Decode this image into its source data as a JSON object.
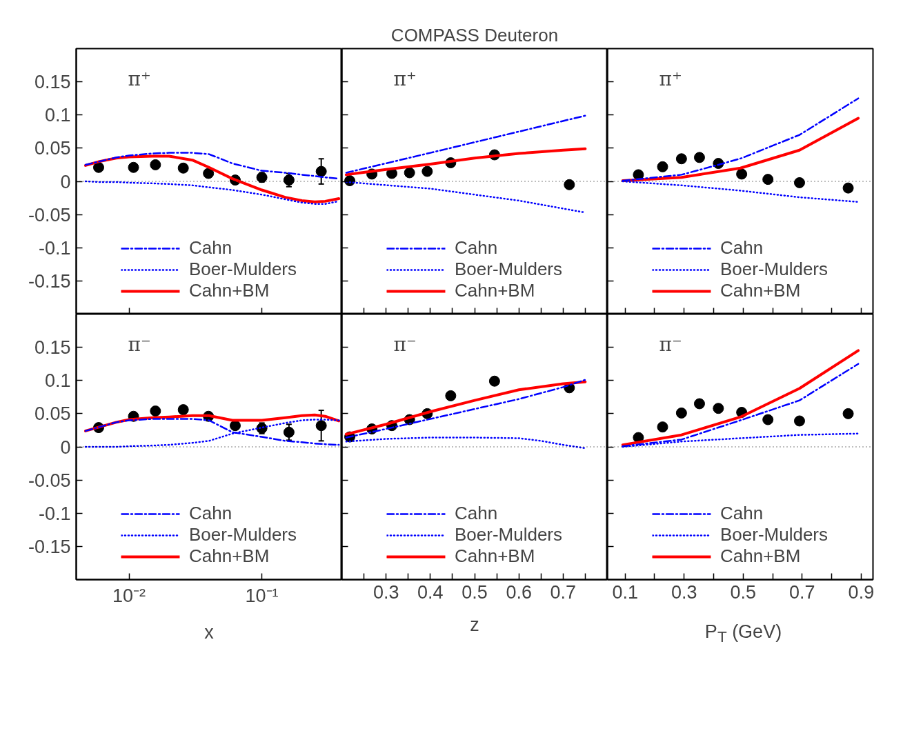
{
  "chart_data": [
    {
      "type": "line",
      "annotations": [
        "π⁺"
      ],
      "log": "x",
      "xlim": [
        0.004,
        0.4
      ],
      "xticks": [
        {
          "value": 0.01,
          "label": null
        },
        {
          "value": 0.1,
          "label": null
        }
      ],
      "ylim": [
        -0.2,
        0.2
      ],
      "yticks": [
        0.15,
        0.1,
        0.05,
        0,
        -0.05,
        -0.1,
        -0.15
      ],
      "tick_labels": "y",
      "grid": false,
      "legend": "bottom",
      "ref_lines": [
        {
          "axis": "y",
          "value": 0,
          "color": "#000000",
          "line_style": "dotted"
        }
      ],
      "series": [
        {
          "type": "scatter",
          "marker": "circle",
          "color": "#000000",
          "x": [
            0.0059,
            0.0108,
            0.0158,
            0.0256,
            0.0396,
            0.063,
            0.1,
            0.16,
            0.28
          ],
          "values": [
            0.021,
            0.021,
            0.025,
            0.02,
            0.012,
            0.002,
            0.006,
            0.002,
            0.015
          ],
          "errors": [
            null,
            null,
            null,
            null,
            null,
            null,
            0.007,
            0.01,
            0.019
          ]
        },
        {
          "name": "Cahn",
          "line_style": "dashdot",
          "color": "#0000ff",
          "x": [
            0.0047,
            0.006,
            0.008,
            0.01,
            0.015,
            0.02,
            0.03,
            0.04,
            0.06,
            0.1,
            0.15,
            0.2,
            0.25,
            0.3,
            0.38
          ],
          "values": [
            0.025,
            0.03,
            0.036,
            0.039,
            0.042,
            0.043,
            0.043,
            0.041,
            0.027,
            0.016,
            0.013,
            0.01,
            0.008,
            0.006,
            0.004
          ]
        },
        {
          "name": "Boer-Mulders",
          "line_style": "dotted",
          "color": "#0000ff",
          "x": [
            0.0047,
            0.006,
            0.008,
            0.01,
            0.015,
            0.02,
            0.03,
            0.04,
            0.06,
            0.1,
            0.15,
            0.2,
            0.25,
            0.3,
            0.38
          ],
          "values": [
            0,
            -0.001,
            -0.001,
            -0.002,
            -0.003,
            -0.004,
            -0.006,
            -0.009,
            -0.013,
            -0.02,
            -0.027,
            -0.032,
            -0.034,
            -0.034,
            -0.03
          ]
        },
        {
          "name": "Cahn+BM",
          "line_style": "solid",
          "color": "#ff0000",
          "x": [
            0.0047,
            0.006,
            0.008,
            0.01,
            0.015,
            0.02,
            0.03,
            0.04,
            0.06,
            0.1,
            0.15,
            0.2,
            0.25,
            0.3,
            0.38
          ],
          "values": [
            0.024,
            0.03,
            0.035,
            0.037,
            0.038,
            0.038,
            0.032,
            0.021,
            0.004,
            -0.013,
            -0.024,
            -0.029,
            -0.031,
            -0.03,
            -0.026
          ]
        }
      ]
    },
    {
      "type": "line",
      "title": "COMPASS Deuteron",
      "annotations": [
        "π⁺"
      ],
      "xlim": [
        0.2,
        0.8
      ],
      "xticks": [
        {
          "value": 0.25,
          "label": null
        },
        0.3,
        {
          "value": 0.35,
          "label": null
        },
        0.4,
        {
          "value": 0.45,
          "label": null
        },
        0.5,
        {
          "value": 0.55,
          "label": null
        },
        0.6,
        {
          "value": 0.65,
          "label": null
        },
        0.7,
        {
          "value": 0.75,
          "label": null
        }
      ],
      "ylim": [
        -0.2,
        0.2
      ],
      "yticks": [
        0.15,
        0.1,
        0.05,
        0,
        -0.05,
        -0.1,
        -0.15
      ],
      "tick_labels": false,
      "grid": false,
      "legend": "bottom",
      "ref_lines": [
        {
          "axis": "y",
          "value": 0,
          "color": "#000000",
          "line_style": "dotted"
        }
      ],
      "series": [
        {
          "type": "scatter",
          "marker": "circle",
          "color": "#000000",
          "x": [
            0.218,
            0.268,
            0.313,
            0.353,
            0.393,
            0.446,
            0.545,
            0.714
          ],
          "values": [
            0.001,
            0.011,
            0.012,
            0.013,
            0.015,
            0.028,
            0.04,
            -0.005
          ]
        },
        {
          "name": "Cahn",
          "line_style": "dashdot",
          "color": "#0000ff",
          "x": [
            0.21,
            0.4,
            0.6,
            0.75
          ],
          "values": [
            0.013,
            0.043,
            0.075,
            0.099
          ]
        },
        {
          "name": "Boer-Mulders",
          "line_style": "dotted",
          "color": "#0000ff",
          "x": [
            0.21,
            0.4,
            0.6,
            0.75
          ],
          "values": [
            -0.001,
            -0.011,
            -0.029,
            -0.047
          ]
        },
        {
          "name": "Cahn+BM",
          "line_style": "solid",
          "color": "#ff0000",
          "x": [
            0.21,
            0.3,
            0.4,
            0.5,
            0.6,
            0.7,
            0.75
          ],
          "values": [
            0.01,
            0.018,
            0.026,
            0.035,
            0.042,
            0.047,
            0.049
          ]
        }
      ]
    },
    {
      "type": "line",
      "annotations": [
        "π⁺"
      ],
      "xlim": [
        0.04,
        0.94
      ],
      "xticks": [
        0.1,
        {
          "value": 0.2,
          "label": null
        },
        0.3,
        {
          "value": 0.4,
          "label": null
        },
        0.5,
        {
          "value": 0.6,
          "label": null
        },
        0.7,
        {
          "value": 0.8,
          "label": null
        },
        0.9
      ],
      "ylim": [
        -0.2,
        0.2
      ],
      "yticks": [
        0.15,
        0.1,
        0.05,
        0,
        -0.05,
        -0.1,
        -0.15
      ],
      "tick_labels": false,
      "grid": false,
      "legend": "bottom",
      "ref_lines": [
        {
          "axis": "y",
          "value": 0,
          "color": "#000000",
          "line_style": "dotted"
        }
      ],
      "series": [
        {
          "type": "scatter",
          "marker": "circle",
          "color": "#000000",
          "x": [
            0.145,
            0.227,
            0.291,
            0.352,
            0.416,
            0.495,
            0.584,
            0.691,
            0.856
          ],
          "values": [
            0.01,
            0.022,
            0.034,
            0.036,
            0.027,
            0.011,
            0.003,
            -0.002,
            -0.01
          ]
        },
        {
          "name": "Cahn",
          "line_style": "dashdot",
          "color": "#0000ff",
          "x": [
            0.092,
            0.291,
            0.416,
            0.495,
            0.691,
            0.89
          ],
          "values": [
            0.001,
            0.01,
            0.025,
            0.035,
            0.07,
            0.125
          ]
        },
        {
          "name": "Boer-Mulders",
          "line_style": "dotted",
          "color": "#0000ff",
          "x": [
            0.092,
            0.291,
            0.491,
            0.691,
            0.89
          ],
          "values": [
            0,
            -0.006,
            -0.014,
            -0.024,
            -0.031
          ]
        },
        {
          "name": "Cahn+BM",
          "line_style": "solid",
          "color": "#ff0000",
          "x": [
            0.092,
            0.291,
            0.491,
            0.691,
            0.89
          ],
          "values": [
            0.001,
            0.006,
            0.02,
            0.047,
            0.095
          ]
        }
      ]
    },
    {
      "type": "line",
      "xlabel": "x",
      "annotations": [
        "π⁻"
      ],
      "log": "x",
      "xlim": [
        0.004,
        0.4
      ],
      "xticks": [
        {
          "value": 0.01,
          "label": "10⁻²"
        },
        {
          "value": 0.1,
          "label": "10⁻¹"
        }
      ],
      "ylim": [
        -0.2,
        0.2
      ],
      "yticks": [
        0.15,
        0.1,
        0.05,
        0,
        -0.05,
        -0.1,
        -0.15
      ],
      "grid": false,
      "legend": "bottom",
      "ref_lines": [
        {
          "axis": "y",
          "value": 0,
          "color": "#000000",
          "line_style": "dotted"
        }
      ],
      "series": [
        {
          "type": "scatter",
          "marker": "circle",
          "color": "#000000",
          "x": [
            0.0059,
            0.0108,
            0.0158,
            0.0256,
            0.0396,
            0.063,
            0.1,
            0.16,
            0.28
          ],
          "values": [
            0.029,
            0.046,
            0.054,
            0.056,
            0.046,
            0.032,
            0.028,
            0.022,
            0.032
          ],
          "errors": [
            null,
            null,
            null,
            null,
            null,
            null,
            0.008,
            0.012,
            0.023
          ]
        },
        {
          "name": "Cahn",
          "line_style": "dashdot",
          "color": "#0000ff",
          "x": [
            0.0047,
            0.006,
            0.008,
            0.01,
            0.015,
            0.02,
            0.03,
            0.04,
            0.06,
            0.1,
            0.15,
            0.2,
            0.25,
            0.3,
            0.38
          ],
          "values": [
            0.024,
            0.03,
            0.037,
            0.04,
            0.042,
            0.042,
            0.042,
            0.04,
            0.022,
            0.015,
            0.009,
            0.007,
            0.005,
            0.004,
            0.003
          ]
        },
        {
          "name": "Boer-Mulders",
          "line_style": "dotted",
          "color": "#0000ff",
          "x": [
            0.0047,
            0.006,
            0.008,
            0.01,
            0.015,
            0.02,
            0.03,
            0.04,
            0.06,
            0.1,
            0.15,
            0.2,
            0.25,
            0.3,
            0.38
          ],
          "values": [
            0,
            0,
            0,
            0.001,
            0.002,
            0.003,
            0.006,
            0.009,
            0.02,
            0.029,
            0.036,
            0.04,
            0.041,
            0.041,
            0.04
          ]
        },
        {
          "name": "Cahn+BM",
          "line_style": "solid",
          "color": "#ff0000",
          "x": [
            0.0047,
            0.006,
            0.008,
            0.01,
            0.015,
            0.02,
            0.03,
            0.04,
            0.06,
            0.1,
            0.15,
            0.2,
            0.25,
            0.3,
            0.38
          ],
          "values": [
            0.024,
            0.03,
            0.037,
            0.041,
            0.044,
            0.045,
            0.047,
            0.047,
            0.04,
            0.04,
            0.044,
            0.047,
            0.048,
            0.046,
            0.039
          ]
        }
      ]
    },
    {
      "type": "line",
      "xlabel": "z",
      "annotations": [
        "π⁻"
      ],
      "xlim": [
        0.2,
        0.8
      ],
      "xticks": [
        {
          "value": 0.25,
          "label": null
        },
        0.3,
        {
          "value": 0.35,
          "label": null
        },
        0.4,
        {
          "value": 0.45,
          "label": null
        },
        0.5,
        {
          "value": 0.55,
          "label": null
        },
        0.6,
        {
          "value": 0.65,
          "label": null
        },
        0.7,
        {
          "value": 0.75,
          "label": null
        }
      ],
      "ylim": [
        -0.2,
        0.2
      ],
      "yticks": [
        0.15,
        0.1,
        0.05,
        0,
        -0.05,
        -0.1,
        -0.15
      ],
      "tick_labels": "x",
      "grid": false,
      "legend": "bottom",
      "ref_lines": [
        {
          "axis": "y",
          "value": 0,
          "color": "#000000",
          "line_style": "dotted"
        }
      ],
      "series": [
        {
          "type": "scatter",
          "marker": "circle",
          "color": "#000000",
          "x": [
            0.218,
            0.268,
            0.313,
            0.353,
            0.393,
            0.446,
            0.545,
            0.714
          ],
          "values": [
            0.015,
            0.027,
            0.032,
            0.041,
            0.05,
            0.077,
            0.099,
            0.089
          ]
        },
        {
          "name": "Cahn",
          "line_style": "dashdot",
          "color": "#0000ff",
          "x": [
            0.21,
            0.3,
            0.4,
            0.5,
            0.6,
            0.7,
            0.75
          ],
          "values": [
            0.014,
            0.027,
            0.042,
            0.057,
            0.072,
            0.09,
            0.101
          ]
        },
        {
          "name": "Boer-Mulders",
          "line_style": "dotted",
          "color": "#0000ff",
          "x": [
            0.21,
            0.3,
            0.4,
            0.5,
            0.6,
            0.65,
            0.7,
            0.75
          ],
          "values": [
            0.008,
            0.012,
            0.014,
            0.014,
            0.013,
            0.009,
            0.003,
            -0.002
          ]
        },
        {
          "name": "Cahn+BM",
          "line_style": "solid",
          "color": "#ff0000",
          "x": [
            0.21,
            0.3,
            0.4,
            0.5,
            0.6,
            0.7,
            0.75
          ],
          "values": [
            0.019,
            0.034,
            0.053,
            0.07,
            0.086,
            0.095,
            0.098
          ]
        }
      ]
    },
    {
      "type": "line",
      "xlabel": "P$_{T}$ (GeV)",
      "annotations": [
        "π⁻"
      ],
      "xlim": [
        0.04,
        0.94
      ],
      "xticks": [
        0.1,
        {
          "value": 0.2,
          "label": null
        },
        0.3,
        {
          "value": 0.4,
          "label": null
        },
        0.5,
        {
          "value": 0.6,
          "label": null
        },
        0.7,
        {
          "value": 0.8,
          "label": null
        },
        0.9
      ],
      "ylim": [
        -0.2,
        0.2
      ],
      "yticks": [
        0.15,
        0.1,
        0.05,
        0,
        -0.05,
        -0.1,
        -0.15
      ],
      "tick_labels": "x",
      "grid": false,
      "legend": "bottom",
      "ref_lines": [
        {
          "axis": "y",
          "value": 0,
          "color": "#000000",
          "line_style": "dotted"
        }
      ],
      "series": [
        {
          "type": "scatter",
          "marker": "circle",
          "color": "#000000",
          "x": [
            0.145,
            0.227,
            0.291,
            0.352,
            0.416,
            0.495,
            0.584,
            0.691,
            0.856
          ],
          "values": [
            0.014,
            0.03,
            0.051,
            0.065,
            0.058,
            0.052,
            0.041,
            0.039,
            0.05
          ]
        },
        {
          "name": "Cahn",
          "line_style": "dashdot",
          "color": "#0000ff",
          "x": [
            0.092,
            0.291,
            0.491,
            0.691,
            0.89
          ],
          "values": [
            0.001,
            0.011,
            0.04,
            0.07,
            0.125
          ]
        },
        {
          "name": "Boer-Mulders",
          "line_style": "dotted",
          "color": "#0000ff",
          "x": [
            0.092,
            0.291,
            0.491,
            0.691,
            0.89
          ],
          "values": [
            0,
            0.008,
            0.013,
            0.018,
            0.02
          ]
        },
        {
          "name": "Cahn+BM",
          "line_style": "solid",
          "color": "#ff0000",
          "x": [
            0.092,
            0.291,
            0.491,
            0.691,
            0.89
          ],
          "values": [
            0.003,
            0.018,
            0.045,
            0.088,
            0.145
          ]
        }
      ]
    }
  ]
}
